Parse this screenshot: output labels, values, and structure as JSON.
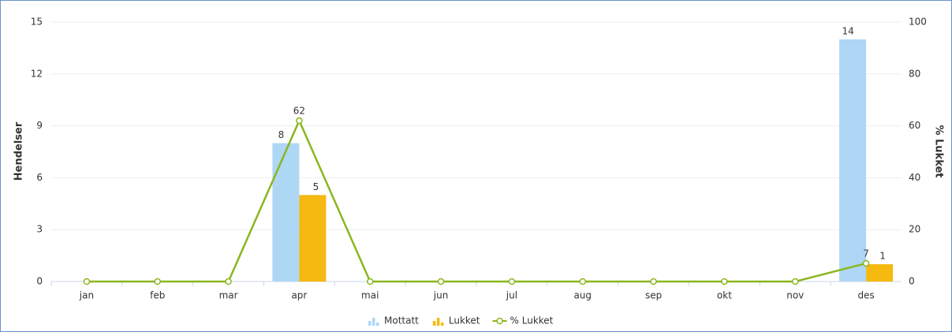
{
  "chart_data": {
    "type": "bar_line",
    "categories": [
      "jan",
      "feb",
      "mar",
      "apr",
      "mai",
      "jun",
      "jul",
      "aug",
      "sep",
      "okt",
      "nov",
      "des"
    ],
    "ylabel": "Hendelser",
    "y2label": "% Lukket",
    "ylim": [
      0,
      15
    ],
    "yticks": [
      0,
      3,
      6,
      9,
      12,
      15
    ],
    "y2lim": [
      0,
      100
    ],
    "y2ticks": [
      0,
      20,
      40,
      60,
      80,
      100
    ],
    "grid": true,
    "legend": "bottom",
    "series": [
      {
        "name": "Mottatt",
        "type": "bar",
        "color": "#aed6f5",
        "values": [
          0,
          0,
          0,
          8,
          0,
          0,
          0,
          0,
          0,
          0,
          0,
          14
        ]
      },
      {
        "name": "Lukket",
        "type": "bar",
        "color": "#f5b90f",
        "values": [
          0,
          0,
          0,
          5,
          0,
          0,
          0,
          0,
          0,
          0,
          0,
          1
        ]
      },
      {
        "name": "% Lukket",
        "type": "line",
        "axis": "y2",
        "color": "#8ab61e",
        "values": [
          0,
          0,
          0,
          62,
          0,
          0,
          0,
          0,
          0,
          0,
          0,
          7
        ]
      }
    ]
  }
}
